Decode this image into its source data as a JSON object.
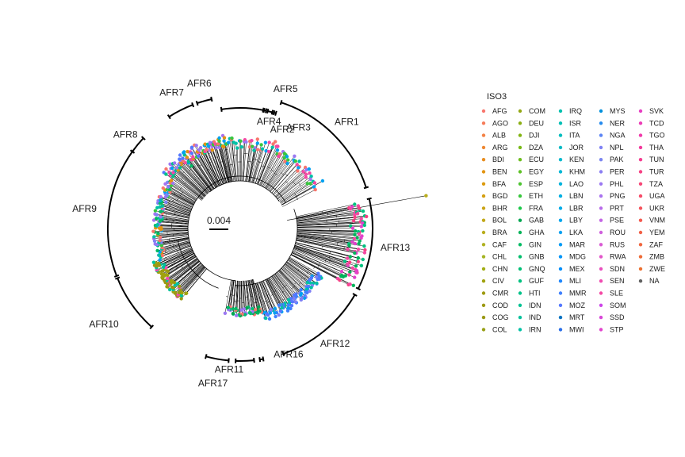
{
  "scale_bar": {
    "label": "0.004"
  },
  "clades": [
    {
      "name": "AFR1",
      "start": 18,
      "end": 72
    },
    {
      "name": "AFR2",
      "start": 13.2,
      "end": 15.4
    },
    {
      "name": "AFR3",
      "start": 16.2,
      "end": 17.2
    },
    {
      "name": "AFR4",
      "start": 11.4,
      "end": 12.4
    },
    {
      "name": "AFR5",
      "start": -9,
      "end": 11
    },
    {
      "name": "AFR6",
      "start": -19,
      "end": -12.5
    },
    {
      "name": "AFR7",
      "start": -32.5,
      "end": -21
    },
    {
      "name": "AFR8",
      "start": -54.5,
      "end": -47
    },
    {
      "name": "AFR9",
      "start": -111,
      "end": -54.5
    },
    {
      "name": "AFR10",
      "start": -138,
      "end": -112
    },
    {
      "name": "AFR17",
      "start": -175,
      "end": -165
    },
    {
      "name": "AFR11",
      "start": -186,
      "end": -178
    },
    {
      "name": "AFR16",
      "start": 170,
      "end": 171.5
    },
    {
      "name": "AFR12",
      "start": 120,
      "end": 161
    },
    {
      "name": "AFR13",
      "start": 77,
      "end": 117
    }
  ],
  "legend": {
    "title": "ISO3",
    "columns": [
      [
        {
          "code": "AFG",
          "color": "#F8766D"
        },
        {
          "code": "AGO",
          "color": "#F67C5A"
        },
        {
          "code": "ALB",
          "color": "#F38246"
        },
        {
          "code": "ARG",
          "color": "#EE8833"
        },
        {
          "code": "BDI",
          "color": "#E88E20"
        },
        {
          "code": "BEN",
          "color": "#E29411"
        },
        {
          "code": "BFA",
          "color": "#DB9A0E"
        },
        {
          "code": "BGD",
          "color": "#D49F12"
        },
        {
          "code": "BHR",
          "color": "#CBA416"
        },
        {
          "code": "BOL",
          "color": "#C2A91A"
        },
        {
          "code": "BRA",
          "color": "#B9AD1D"
        },
        {
          "code": "CAF",
          "color": "#AFB120"
        },
        {
          "code": "CHL",
          "color": "#A4B423"
        },
        {
          "code": "CHN",
          "color": "#A2AE16"
        },
        {
          "code": "CIV",
          "color": "#A0A20F"
        },
        {
          "code": "CMR",
          "color": "#9E9A10"
        },
        {
          "code": "COD",
          "color": "#9C9912"
        },
        {
          "code": "COG",
          "color": "#9A9814"
        },
        {
          "code": "COL",
          "color": "#98A017"
        }
      ],
      [
        {
          "code": "COM",
          "color": "#93A815"
        },
        {
          "code": "DEU",
          "color": "#8BAE13"
        },
        {
          "code": "DJI",
          "color": "#82B412"
        },
        {
          "code": "DZA",
          "color": "#78B916"
        },
        {
          "code": "ECU",
          "color": "#6CBD1D"
        },
        {
          "code": "EGY",
          "color": "#5EC126"
        },
        {
          "code": "ESP",
          "color": "#4DC431"
        },
        {
          "code": "ETH",
          "color": "#38C73D"
        },
        {
          "code": "FRA",
          "color": "#1CC94A"
        },
        {
          "code": "GAB",
          "color": "#00A650"
        },
        {
          "code": "GHA",
          "color": "#00B35A"
        },
        {
          "code": "GIN",
          "color": "#00BB63"
        },
        {
          "code": "GNB",
          "color": "#00BE6C"
        },
        {
          "code": "GNQ",
          "color": "#00C076"
        },
        {
          "code": "GUF",
          "color": "#00C17F"
        },
        {
          "code": "HTI",
          "color": "#00C289"
        },
        {
          "code": "IDN",
          "color": "#00C293"
        },
        {
          "code": "IND",
          "color": "#00C29C"
        },
        {
          "code": "IRN",
          "color": "#00C1A5"
        }
      ],
      [
        {
          "code": "IRQ",
          "color": "#00C0AE"
        },
        {
          "code": "ISR",
          "color": "#00BFB6"
        },
        {
          "code": "ITA",
          "color": "#00BDBE"
        },
        {
          "code": "JOR",
          "color": "#00BBC6"
        },
        {
          "code": "KEN",
          "color": "#00B9CE"
        },
        {
          "code": "KHM",
          "color": "#00B6D5"
        },
        {
          "code": "LAO",
          "color": "#00B3DC"
        },
        {
          "code": "LBN",
          "color": "#00AFE2"
        },
        {
          "code": "LBR",
          "color": "#00ABE8"
        },
        {
          "code": "LBY",
          "color": "#00A6ED"
        },
        {
          "code": "LKA",
          "color": "#00A1F1"
        },
        {
          "code": "MAR",
          "color": "#009BF5"
        },
        {
          "code": "MDG",
          "color": "#0095F8"
        },
        {
          "code": "MEX",
          "color": "#008EFA"
        },
        {
          "code": "MLI",
          "color": "#1F87FC"
        },
        {
          "code": "MMR",
          "color": "#3F80FD"
        },
        {
          "code": "MOZ",
          "color": "#5478FE"
        },
        {
          "code": "MRT",
          "color": "#0073C2"
        },
        {
          "code": "MWI",
          "color": "#2A6FE8"
        }
      ],
      [
        {
          "code": "MYS",
          "color": "#0090DC"
        },
        {
          "code": "NER",
          "color": "#238AEE"
        },
        {
          "code": "NGA",
          "color": "#5C85F5"
        },
        {
          "code": "NPL",
          "color": "#7F81F5"
        },
        {
          "code": "PAK",
          "color": "#7A85F0"
        },
        {
          "code": "PER",
          "color": "#8A7EF2"
        },
        {
          "code": "PHL",
          "color": "#9B78F2"
        },
        {
          "code": "PNG",
          "color": "#A972EF"
        },
        {
          "code": "PRT",
          "color": "#B86BEA"
        },
        {
          "code": "PSE",
          "color": "#C465E4"
        },
        {
          "code": "ROU",
          "color": "#CF5FDC"
        },
        {
          "code": "RUS",
          "color": "#D959D3"
        },
        {
          "code": "RWA",
          "color": "#E254C9"
        },
        {
          "code": "SDN",
          "color": "#E94FBE"
        },
        {
          "code": "SEN",
          "color": "#EF4BB1"
        },
        {
          "code": "SLE",
          "color": "#F448A4"
        },
        {
          "code": "SOM",
          "color": "#CC44E8"
        },
        {
          "code": "SSD",
          "color": "#D845D8"
        },
        {
          "code": "STP",
          "color": "#E242CC"
        }
      ],
      [
        {
          "code": "SVK",
          "color": "#E73EC2"
        },
        {
          "code": "TCD",
          "color": "#EC3BB6"
        },
        {
          "code": "TGO",
          "color": "#F03AAA"
        },
        {
          "code": "THA",
          "color": "#F33A9D"
        },
        {
          "code": "TUN",
          "color": "#F53C90"
        },
        {
          "code": "TUR",
          "color": "#F64083"
        },
        {
          "code": "TZA",
          "color": "#F74676"
        },
        {
          "code": "UGA",
          "color": "#F64C69"
        },
        {
          "code": "UKR",
          "color": "#F5535C"
        },
        {
          "code": "VNM",
          "color": "#F45A50"
        },
        {
          "code": "YEM",
          "color": "#F26046"
        },
        {
          "code": "ZAF",
          "color": "#F0663D"
        },
        {
          "code": "ZMB",
          "color": "#EE6B36"
        },
        {
          "code": "ZWE",
          "color": "#EC7030"
        },
        {
          "code": "NA",
          "color": "#606060"
        }
      ]
    ]
  }
}
